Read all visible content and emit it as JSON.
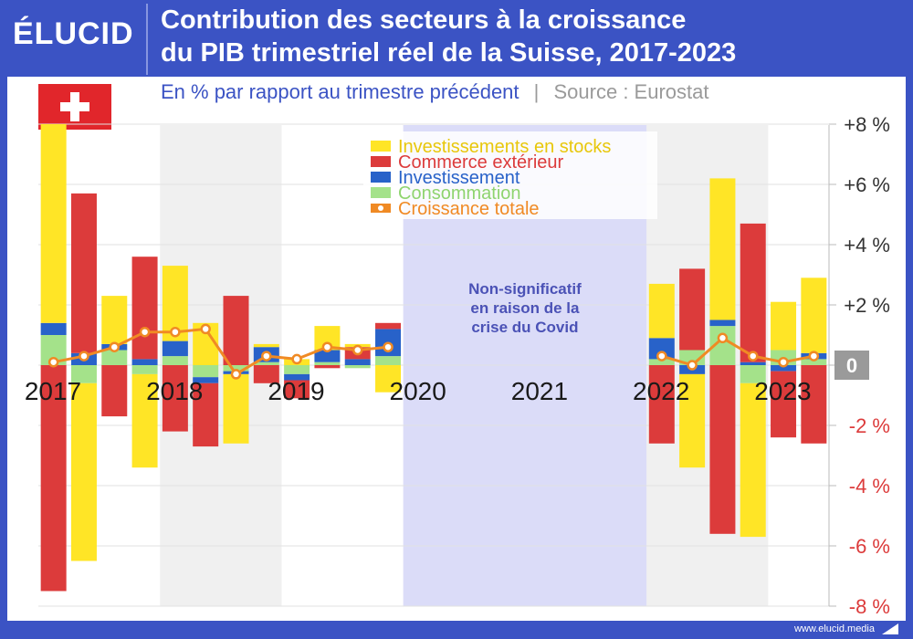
{
  "brand": {
    "logo": "ÉLUCID",
    "footer_url": "www.elucid.media"
  },
  "colors": {
    "brand_blue": "#3b53c4",
    "stocks": "#ffe526",
    "trade": "#dc3b3b",
    "investment": "#2862c9",
    "consumption": "#a4e28a",
    "total": "#f08a24",
    "covid": "#dbdcf8",
    "year_band": "#f0f0f0"
  },
  "header": {
    "title_line1": "Contribution des secteurs à la croissance",
    "title_line2": "du PIB trimestriel réel de la Suisse, 2017-2023",
    "subtitle": "En % par rapport au trimestre précédent",
    "separator": "|",
    "source": "Source : Eurostat"
  },
  "chart_data": {
    "type": "bar",
    "stacked": true,
    "title": "Contribution des secteurs à la croissance du PIB trimestriel réel de la Suisse, 2017-2023",
    "ylabel": "En % par rapport au trimestre précédent",
    "ylim": [
      -8,
      8
    ],
    "y_ticks": [
      "+8 %",
      "+6 %",
      "+4 %",
      "+2 %",
      "0",
      "-2 %",
      "-4 %",
      "-6 %",
      "-8 %"
    ],
    "year_labels": [
      "2017",
      "2018",
      "2019",
      "2020",
      "2021",
      "2022",
      "2023"
    ],
    "categories": [
      "2017-Q1",
      "2017-Q2",
      "2017-Q3",
      "2017-Q4",
      "2018-Q1",
      "2018-Q2",
      "2018-Q3",
      "2018-Q4",
      "2019-Q1",
      "2019-Q2",
      "2019-Q3",
      "2019-Q4",
      "2022-Q1",
      "2022-Q2",
      "2022-Q3",
      "2022-Q4",
      "2023-Q1",
      "2023-Q2"
    ],
    "annotation": {
      "lines": [
        "Non-significatif",
        "en raison de la",
        "crise du Covid"
      ],
      "period": "2020-2021"
    },
    "series": [
      {
        "name": "Investissements en stocks",
        "color": "#ffe526",
        "values": [
          6.6,
          -5.9,
          1.6,
          -3.1,
          2.5,
          1.4,
          -2.3,
          0.1,
          0.2,
          0.8,
          0.1,
          -0.9,
          1.8,
          -3.1,
          4.7,
          -5.1,
          1.6,
          2.5
        ]
      },
      {
        "name": "Commerce extérieur",
        "color": "#dc3b3b",
        "values": [
          -7.5,
          5.3,
          -1.7,
          3.4,
          -2.2,
          -2.1,
          2.3,
          -0.6,
          -0.6,
          -0.1,
          0.4,
          0.2,
          -2.6,
          2.7,
          -5.6,
          4.6,
          -2.2,
          -2.6
        ]
      },
      {
        "name": "Investissement",
        "color": "#2862c9",
        "values": [
          0.4,
          0.4,
          0.2,
          0.2,
          0.5,
          -0.2,
          -0.1,
          0.5,
          -0.2,
          0.4,
          0.2,
          0.9,
          0.7,
          -0.3,
          0.2,
          0.1,
          -0.2,
          0.2
        ]
      },
      {
        "name": "Consommation",
        "color": "#a4e28a",
        "values": [
          1.0,
          -0.6,
          0.5,
          -0.3,
          0.3,
          -0.4,
          -0.2,
          0.1,
          -0.3,
          0.1,
          -0.1,
          0.3,
          0.2,
          0.5,
          1.3,
          -0.6,
          0.5,
          0.2
        ]
      },
      {
        "name": "Croissance totale",
        "color": "#f08a24",
        "type": "line",
        "values": [
          0.1,
          0.3,
          0.6,
          1.1,
          1.1,
          1.2,
          -0.3,
          0.3,
          0.2,
          0.6,
          0.5,
          0.6,
          0.3,
          0.0,
          0.9,
          0.3,
          0.1,
          0.3
        ]
      }
    ],
    "legend_position": "top-center"
  }
}
